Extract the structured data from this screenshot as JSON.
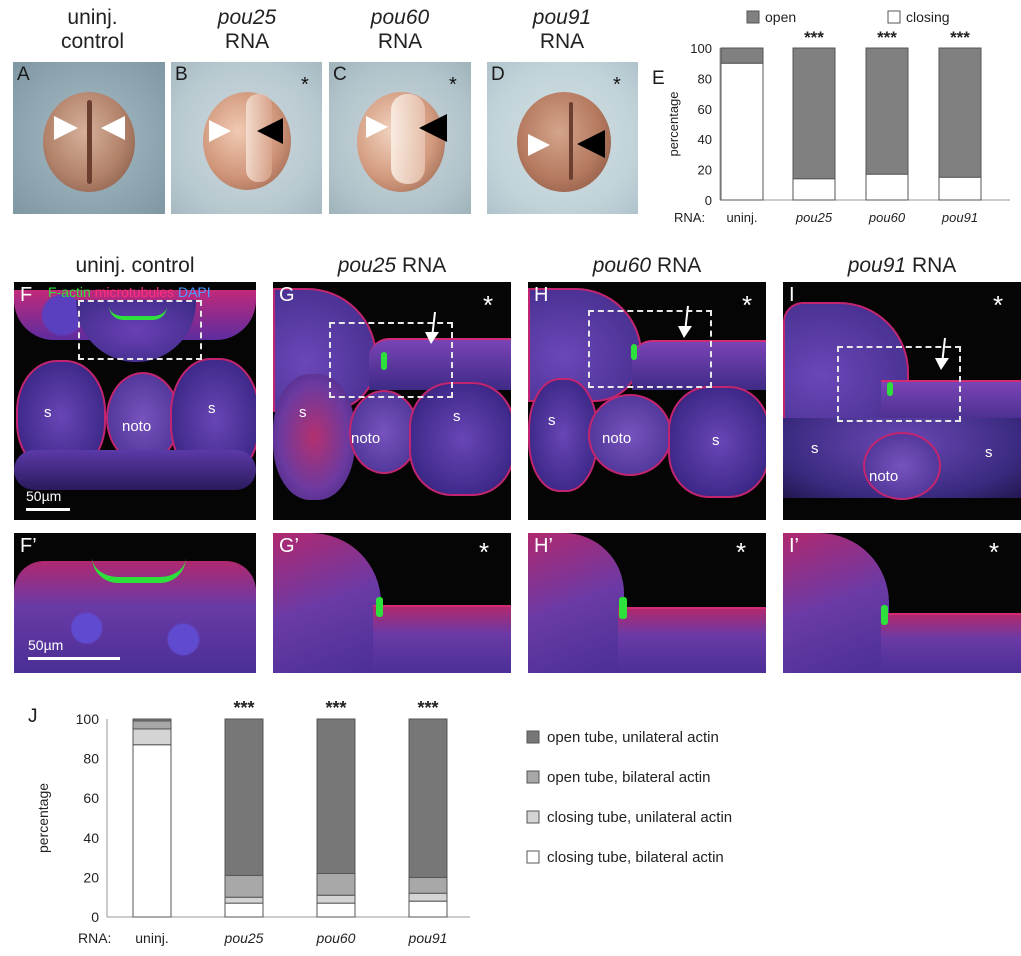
{
  "top_row": {
    "headers": [
      {
        "line1": "uninj.",
        "line1_italic": false,
        "line2": "control"
      },
      {
        "line1": "pou25",
        "line1_italic": true,
        "line2": "RNA"
      },
      {
        "line1": "pou60",
        "line1_italic": true,
        "line2": "RNA"
      },
      {
        "line1": "pou91",
        "line1_italic": true,
        "line2": "RNA"
      }
    ],
    "panels": [
      {
        "label": "A",
        "star": ""
      },
      {
        "label": "B",
        "star": "*"
      },
      {
        "label": "C",
        "star": "*"
      },
      {
        "label": "D",
        "star": "*"
      }
    ],
    "panel_E_label": "E"
  },
  "middle_row": {
    "headers": [
      {
        "pre": "",
        "italic": "",
        "post": "uninj. control"
      },
      {
        "pre": "",
        "italic": "pou25",
        "post": " RNA"
      },
      {
        "pre": "",
        "italic": "pou60",
        "post": " RNA"
      },
      {
        "pre": "",
        "italic": "pou91",
        "post": " RNA"
      }
    ],
    "panels": [
      {
        "label": "F",
        "star": ""
      },
      {
        "label": "G",
        "star": "*"
      },
      {
        "label": "H",
        "star": "*"
      },
      {
        "label": "I",
        "star": "*"
      }
    ],
    "legend": {
      "factin": "F-actin",
      "micro": "microtubules",
      "dapi": "DAPI"
    },
    "tissue_labels": {
      "s": "s",
      "noto": "noto"
    },
    "scale_bar": "50µm"
  },
  "zoom_row": {
    "panels": [
      {
        "label": "F’",
        "star": ""
      },
      {
        "label": "G’",
        "star": "*"
      },
      {
        "label": "H’",
        "star": "*"
      },
      {
        "label": "I’",
        "star": "*"
      }
    ],
    "scale_bar": "50µm"
  },
  "panel_J_label": "J",
  "colors": {
    "open": "#808080",
    "closing": "#ffffff",
    "open_unilateral": "#777777",
    "open_bilateral": "#a8a8a8",
    "closing_unilateral": "#d4d4d4",
    "closing_bilateral": "#ffffff",
    "microtubules": "#e0206a",
    "factin": "#2ee03c",
    "dapi": "#4a7cff"
  },
  "chart_data": [
    {
      "type": "bar",
      "stacked": true,
      "categories": [
        "uninj.",
        "pou25",
        "pou60",
        "pou91"
      ],
      "category_italic": [
        false,
        true,
        true,
        true
      ],
      "category_prefix": "RNA:",
      "series": [
        {
          "name": "closing",
          "values": [
            90,
            14,
            17,
            15
          ]
        },
        {
          "name": "open",
          "values": [
            10,
            86,
            83,
            85
          ]
        }
      ],
      "ylabel": "percentage",
      "ylim": [
        0,
        100
      ],
      "yticks": [
        "0",
        "20",
        "40",
        "60",
        "80",
        "100"
      ],
      "annotations": [
        "",
        "***",
        "***",
        "***"
      ],
      "legend": [
        "open",
        "closing"
      ]
    },
    {
      "type": "bar",
      "stacked": true,
      "categories": [
        "uninj.",
        "pou25",
        "pou60",
        "pou91"
      ],
      "category_italic": [
        false,
        true,
        true,
        true
      ],
      "category_prefix": "RNA:",
      "series": [
        {
          "name": "closing tube, bilateral actin",
          "values": [
            87,
            7,
            7,
            8
          ]
        },
        {
          "name": "closing tube, unilateral actin",
          "values": [
            8,
            3,
            4,
            4
          ]
        },
        {
          "name": "open tube, bilateral actin",
          "values": [
            4,
            11,
            11,
            8
          ]
        },
        {
          "name": "open tube, unilateral actin",
          "values": [
            1,
            79,
            78,
            80
          ]
        }
      ],
      "ylabel": "percentage",
      "ylim": [
        0,
        100
      ],
      "yticks": [
        "0",
        "20",
        "40",
        "60",
        "80",
        "100"
      ],
      "annotations": [
        "",
        "***",
        "***",
        "***"
      ],
      "legend": [
        "open tube, unilateral actin",
        "open tube, bilateral actin",
        "closing tube, unilateral actin",
        "closing tube, bilateral actin"
      ]
    }
  ]
}
